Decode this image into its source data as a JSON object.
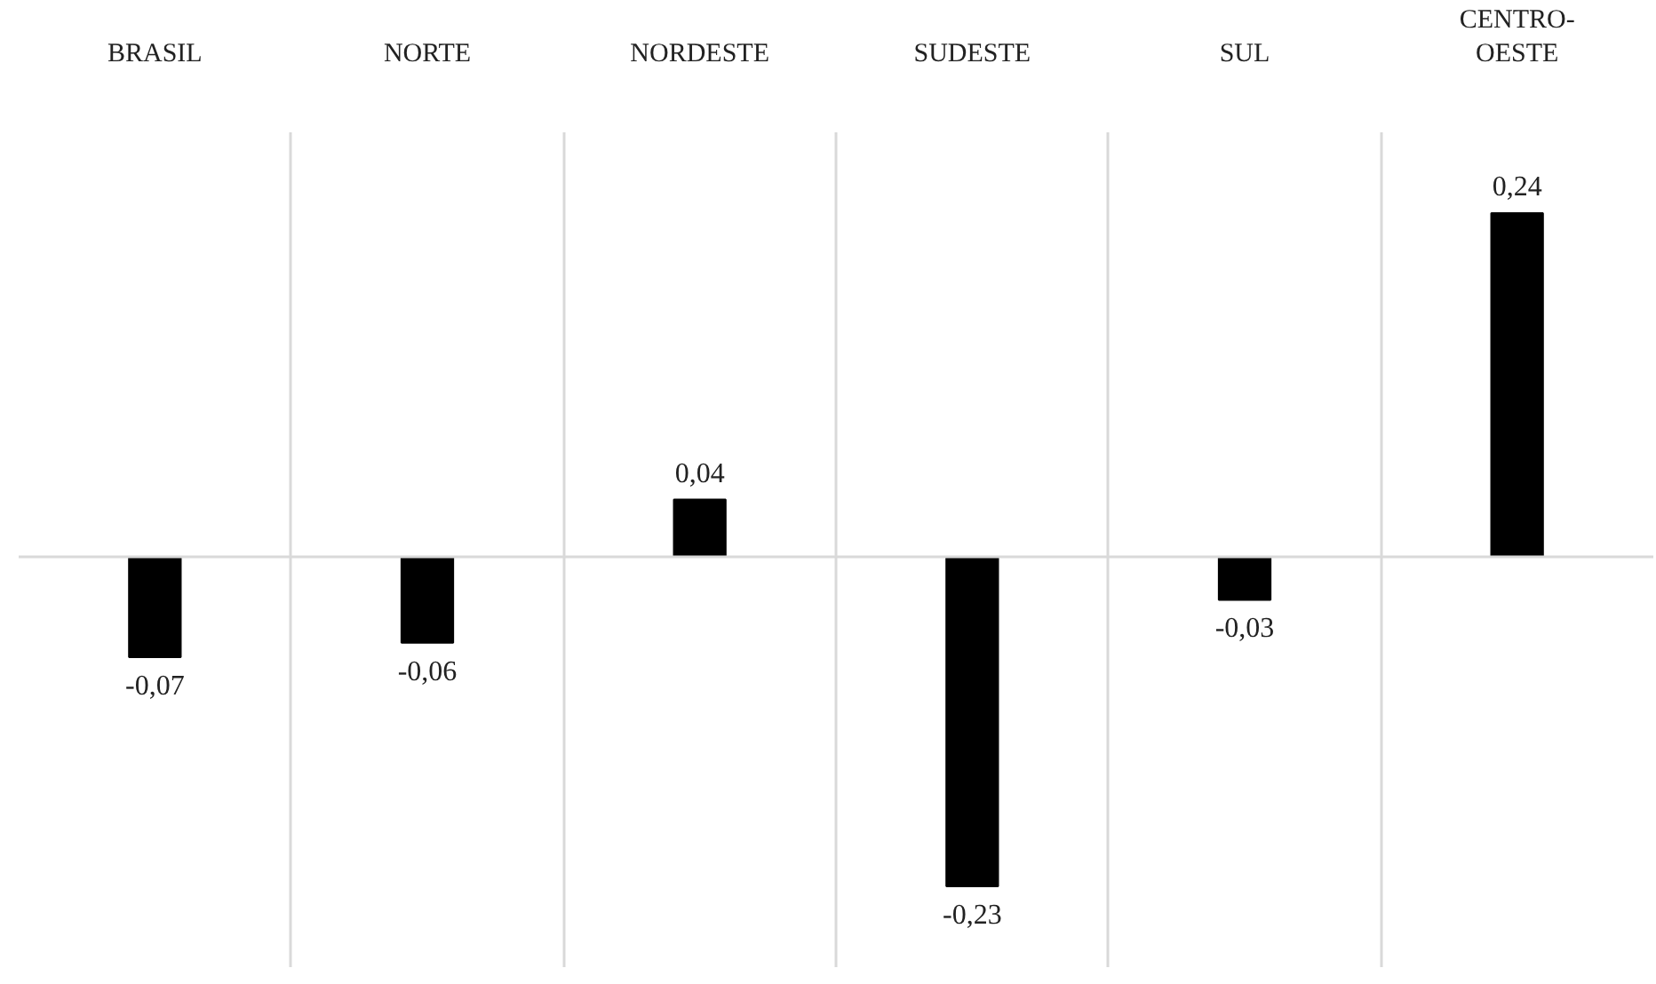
{
  "chart_data": {
    "type": "bar",
    "categories": [
      "BRASIL",
      "NORTE",
      "NORDESTE",
      "SUDESTE",
      "SUL",
      "CENTRO-OESTE"
    ],
    "values": [
      -0.07,
      -0.06,
      0.04,
      -0.23,
      -0.03,
      0.24
    ],
    "value_labels": [
      "-0,07",
      "-0,06",
      "0,04",
      "-0,23",
      "-0,03",
      "0,24"
    ],
    "color": "#000000",
    "grid": "x"
  }
}
